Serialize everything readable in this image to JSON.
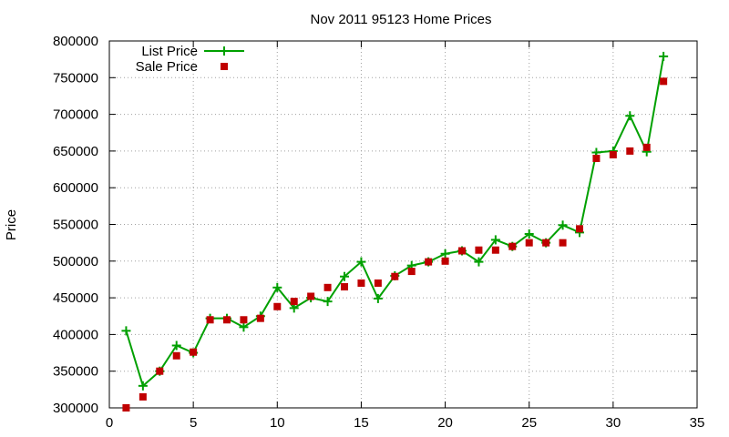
{
  "chart_data": {
    "type": "line",
    "title": "Nov 2011 95123 Home Prices",
    "xlabel": "",
    "ylabel": "Price",
    "xlim": [
      0,
      35
    ],
    "ylim": [
      300000,
      800000
    ],
    "xticks": [
      0,
      5,
      10,
      15,
      20,
      25,
      30,
      35
    ],
    "yticks": [
      300000,
      350000,
      400000,
      450000,
      500000,
      550000,
      600000,
      650000,
      700000,
      750000,
      800000
    ],
    "grid": true,
    "legend_position": "top-left",
    "x": [
      1,
      2,
      3,
      4,
      5,
      6,
      7,
      8,
      9,
      10,
      11,
      12,
      13,
      14,
      15,
      16,
      17,
      18,
      19,
      20,
      21,
      22,
      23,
      24,
      25,
      26,
      27,
      28,
      29,
      30,
      31,
      32,
      33
    ],
    "series": [
      {
        "name": "List Price",
        "style": "linespoints",
        "color": "#00a000",
        "marker": "plus",
        "values": [
          405000,
          330000,
          350000,
          385000,
          375000,
          422000,
          422000,
          410000,
          425000,
          464000,
          436000,
          450000,
          445000,
          479000,
          499000,
          449000,
          480000,
          494000,
          499000,
          510000,
          514000,
          499000,
          529000,
          520000,
          537000,
          525000,
          549000,
          539000,
          648000,
          650000,
          698000,
          649000,
          779000
        ]
      },
      {
        "name": "Sale Price",
        "style": "points",
        "color": "#c00000",
        "marker": "square",
        "values": [
          300000,
          315000,
          350000,
          371000,
          376000,
          420000,
          420000,
          420000,
          422000,
          438000,
          445000,
          452000,
          464000,
          465000,
          470000,
          470000,
          479000,
          486000,
          499000,
          500000,
          514000,
          515000,
          515000,
          520000,
          525000,
          525000,
          525000,
          544000,
          640000,
          645000,
          650000,
          655000,
          745000
        ]
      }
    ]
  }
}
